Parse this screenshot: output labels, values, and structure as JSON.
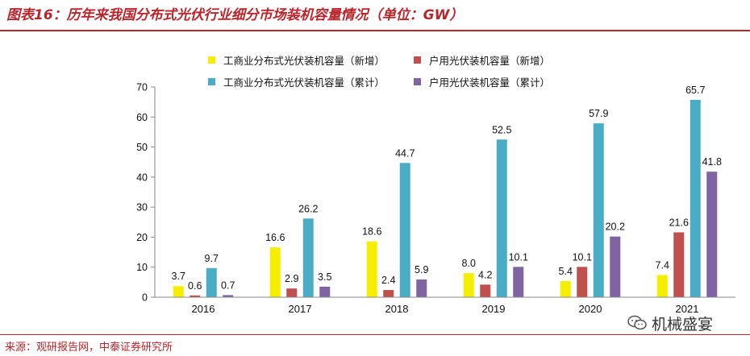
{
  "header": {
    "title": "图表16：历年来我国分布式光伏行业细分市场装机容量情况（单位：GW）"
  },
  "footer": {
    "source": "来源：观研报告网，中泰证券研究所"
  },
  "watermark": {
    "text": "机械盛宴",
    "icon": "wechat-icon"
  },
  "colors": {
    "brand": "#b8252a"
  },
  "chart_data": {
    "type": "bar",
    "title": "",
    "xlabel": "",
    "ylabel": "",
    "ylim": [
      0,
      70
    ],
    "yticks": [
      "0",
      "10",
      "20",
      "30",
      "40",
      "50",
      "60",
      "70"
    ],
    "categories": [
      "2016",
      "2017",
      "2018",
      "2019",
      "2020",
      "2021"
    ],
    "series": [
      {
        "name": "工商业分布式光伏装机容量（新增）",
        "color": "#f5ee00",
        "values": [
          3.7,
          16.6,
          18.6,
          8.0,
          5.4,
          7.4
        ],
        "labels": [
          "3.7",
          "16.6",
          "18.6",
          "8.0",
          "5.4",
          "7.4"
        ]
      },
      {
        "name": "户用光伏装机容量（新增）",
        "color": "#c0504d",
        "values": [
          0.6,
          2.9,
          2.4,
          4.2,
          10.1,
          21.6
        ],
        "labels": [
          "0.6",
          "2.9",
          "2.4",
          "4.2",
          "10.1",
          "21.6"
        ]
      },
      {
        "name": "工商业分布式光伏装机容量（累计）",
        "color": "#4bacc6",
        "values": [
          9.7,
          26.2,
          44.7,
          52.5,
          57.9,
          65.7
        ],
        "labels": [
          "9.7",
          "26.2",
          "44.7",
          "52.5",
          "57.9",
          "65.7"
        ]
      },
      {
        "name": "户用光伏装机容量（累计）",
        "color": "#8064a2",
        "values": [
          0.7,
          3.5,
          5.9,
          10.1,
          20.2,
          41.8
        ],
        "labels": [
          "0.7",
          "3.5",
          "5.9",
          "10.1",
          "20.2",
          "41.8"
        ]
      }
    ],
    "legend_position": "top"
  }
}
